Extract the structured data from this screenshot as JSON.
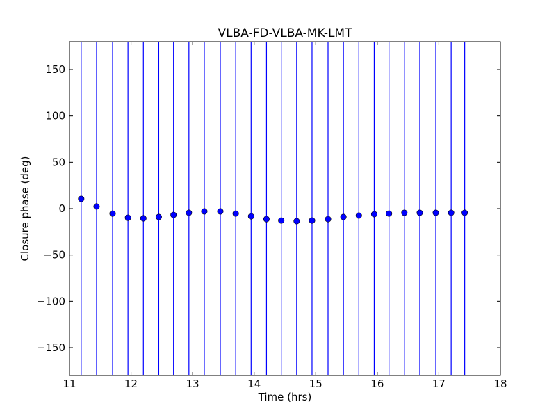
{
  "chart_data": {
    "type": "scatter",
    "title": "VLBA-FD-VLBA-MK-LMT",
    "xlabel": "Time (hrs)",
    "ylabel": "Closure phase (deg)",
    "xlim": [
      11,
      18
    ],
    "ylim": [
      -180,
      180
    ],
    "xticks": [
      11,
      12,
      13,
      14,
      15,
      16,
      17,
      18
    ],
    "xtick_labels": [
      "11",
      "12",
      "13",
      "14",
      "15",
      "16",
      "17",
      "18"
    ],
    "yticks": [
      -150,
      -100,
      -50,
      0,
      50,
      100,
      150
    ],
    "ytick_labels": [
      "−150",
      "−100",
      "−50",
      "0",
      "50",
      "100",
      "150"
    ],
    "grid": false,
    "marker_color": "#0000ff",
    "errorbar_color": "#0000ff",
    "series": [
      {
        "name": "closure phase",
        "x": [
          11.19,
          11.44,
          11.7,
          11.95,
          12.2,
          12.45,
          12.69,
          12.94,
          13.19,
          13.45,
          13.7,
          13.95,
          14.2,
          14.44,
          14.69,
          14.94,
          15.2,
          15.45,
          15.7,
          15.95,
          16.19,
          16.44,
          16.69,
          16.95,
          17.2,
          17.42
        ],
        "y": [
          10.5,
          2.3,
          -5.3,
          -9.8,
          -10.5,
          -9.0,
          -6.8,
          -4.5,
          -3.0,
          -3.0,
          -5.3,
          -8.3,
          -11.3,
          -12.8,
          -13.5,
          -12.8,
          -11.3,
          -9.0,
          -7.5,
          -6.0,
          -5.3,
          -4.5,
          -4.5,
          -4.5,
          -4.5,
          -4.5
        ],
        "yerr": [
          200,
          200,
          200,
          200,
          200,
          200,
          200,
          200,
          200,
          200,
          200,
          200,
          200,
          200,
          200,
          200,
          200,
          200,
          200,
          200,
          200,
          200,
          200,
          200,
          200,
          200
        ]
      }
    ]
  }
}
